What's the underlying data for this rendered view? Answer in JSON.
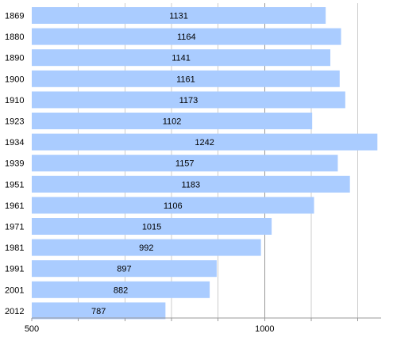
{
  "chart_data": {
    "type": "bar",
    "orientation": "horizontal",
    "title": "",
    "xlabel": "",
    "ylabel": "",
    "categories": [
      "1869",
      "1880",
      "1890",
      "1900",
      "1910",
      "1923",
      "1934",
      "1939",
      "1951",
      "1961",
      "1971",
      "1981",
      "1991",
      "2001",
      "2012"
    ],
    "values": [
      1131,
      1164,
      1141,
      1161,
      1173,
      1102,
      1242,
      1157,
      1183,
      1106,
      1015,
      992,
      897,
      882,
      787
    ],
    "xlim": [
      500,
      1250
    ],
    "x_tick_labels": [
      "500",
      "1000"
    ],
    "grid": true,
    "legend": "none",
    "colors": {
      "bar": "#aaccff",
      "grid": "#cccccc",
      "axis": "#999999"
    }
  }
}
